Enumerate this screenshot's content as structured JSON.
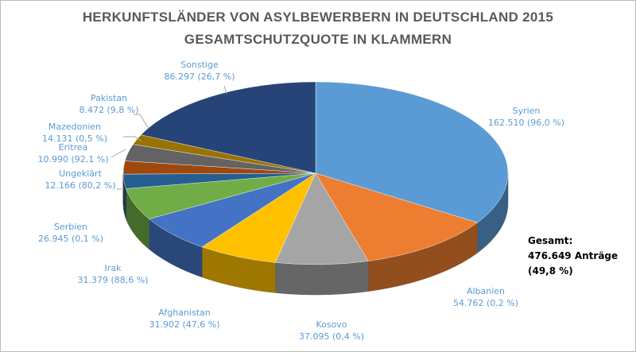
{
  "chart_data": {
    "type": "pie",
    "title": "HERKUNFTSLÄNDER VON ASYLBEWERBERN IN DEUTSCHLAND 2015",
    "subtitle": "GESAMTSCHUTZQUOTE IN KLAMMERN",
    "slices": [
      {
        "name": "Syrien",
        "value": 162510,
        "value_label": "162.510",
        "quote": "(96,0 %)",
        "color": "#5b9bd5"
      },
      {
        "name": "Albanien",
        "value": 54762,
        "value_label": "54.762",
        "quote": "(0,2 %)",
        "color": "#ed7d31"
      },
      {
        "name": "Kosovo",
        "value": 37095,
        "value_label": "37.095",
        "quote": "(0,4 %)",
        "color": "#a5a5a5"
      },
      {
        "name": "Afghanistan",
        "value": 31902,
        "value_label": "31.902",
        "quote": "(47,6 %)",
        "color": "#ffc000"
      },
      {
        "name": "Irak",
        "value": 31379,
        "value_label": "31.379",
        "quote": "(88,6 %)",
        "color": "#4472c4"
      },
      {
        "name": "Serbien",
        "value": 26945,
        "value_label": "26.945",
        "quote": "(0,1 %)",
        "color": "#70ad47"
      },
      {
        "name": "Ungeklärt",
        "value": 12166,
        "value_label": "12.166",
        "quote": "(80,2 %)",
        "color": "#255e91"
      },
      {
        "name": "Eritrea",
        "value": 10990,
        "value_label": "10.990",
        "quote": "(92,1 %)",
        "color": "#9e480e"
      },
      {
        "name": "Mazedonien",
        "value": 14131,
        "value_label": "14.131",
        "quote": "(0,5 %)",
        "color": "#636363"
      },
      {
        "name": "Pakistan",
        "value": 8472,
        "value_label": "8.472",
        "quote": "(9,8 %)",
        "color": "#997300"
      },
      {
        "name": "Sonstige",
        "value": 86297,
        "value_label": "86.297",
        "quote": "(26,7 %)",
        "color": "#264478"
      }
    ],
    "total": {
      "line1": "Gesamt:",
      "line2": "476.649  Anträge",
      "line3": "(49,8 %)"
    }
  }
}
